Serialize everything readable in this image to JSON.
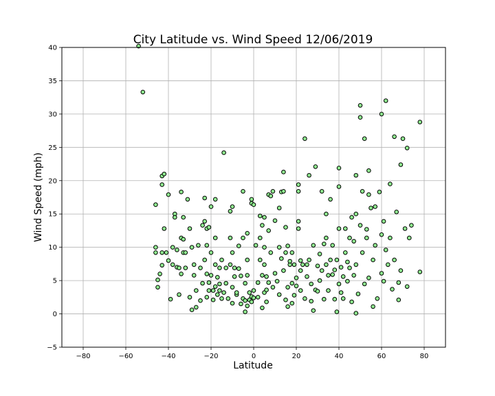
{
  "chart_data": {
    "type": "scatter",
    "title": "City Latitude vs. Wind Speed 12/06/2019",
    "xlabel": "Latitude",
    "ylabel": "Wind Speed (mph)",
    "xlim": [
      -90,
      90
    ],
    "ylim": [
      -5,
      40
    ],
    "xticks": [
      -80,
      -60,
      -40,
      -20,
      0,
      20,
      40,
      60,
      80
    ],
    "yticks": [
      -5,
      0,
      5,
      10,
      15,
      20,
      25,
      30,
      35,
      40
    ],
    "grid": true,
    "marker_color": "#90ee90",
    "marker_edge_color": "#000000",
    "points": [
      [
        -54,
        40.2
      ],
      [
        -52,
        33.3
      ],
      [
        -46,
        16.4
      ],
      [
        -46,
        10
      ],
      [
        -46,
        9.2
      ],
      [
        -45,
        4
      ],
      [
        -45,
        5.1
      ],
      [
        -44,
        6
      ],
      [
        -43,
        19.4
      ],
      [
        -43,
        20.7
      ],
      [
        -43,
        9.2
      ],
      [
        -43,
        7.3
      ],
      [
        -42,
        21
      ],
      [
        -42,
        12.8
      ],
      [
        -41,
        9.2
      ],
      [
        -40,
        17.9
      ],
      [
        -40,
        8
      ],
      [
        -39,
        2.2
      ],
      [
        -38,
        7.4
      ],
      [
        -38,
        10
      ],
      [
        -37,
        15
      ],
      [
        -37,
        14.5
      ],
      [
        -36,
        9.6
      ],
      [
        -36,
        7
      ],
      [
        -35,
        2.9
      ],
      [
        -35,
        6.9
      ],
      [
        -34,
        18.3
      ],
      [
        -34,
        11.4
      ],
      [
        -34,
        6
      ],
      [
        -33,
        9.2
      ],
      [
        -33,
        14.5
      ],
      [
        -33,
        11.2
      ],
      [
        -32,
        9.2
      ],
      [
        -32,
        6.9
      ],
      [
        -31,
        17.2
      ],
      [
        -30,
        12.8
      ],
      [
        -30,
        2.5
      ],
      [
        -29,
        10
      ],
      [
        -29,
        0.6
      ],
      [
        -28,
        5.8
      ],
      [
        -28,
        7.4
      ],
      [
        -27,
        3.5
      ],
      [
        -27,
        1
      ],
      [
        -26,
        10.3
      ],
      [
        -25,
        2
      ],
      [
        -25,
        6.9
      ],
      [
        -24,
        13.3
      ],
      [
        -24,
        4.6
      ],
      [
        -23,
        8.1
      ],
      [
        -23,
        13.9
      ],
      [
        -23,
        17.4
      ],
      [
        -22,
        12.8
      ],
      [
        -22,
        10.3
      ],
      [
        -22,
        6
      ],
      [
        -22,
        2.5
      ],
      [
        -21,
        3.5
      ],
      [
        -21,
        13
      ],
      [
        -21,
        4.7
      ],
      [
        -20,
        9.2
      ],
      [
        -20,
        16.1
      ],
      [
        -20,
        5.8
      ],
      [
        -19,
        3.5
      ],
      [
        -19,
        2.1
      ],
      [
        -18,
        7.4
      ],
      [
        -18,
        11.4
      ],
      [
        -18,
        4.1
      ],
      [
        -18,
        17.2
      ],
      [
        -17,
        5.5
      ],
      [
        -17,
        2.9
      ],
      [
        -16,
        3.5
      ],
      [
        -16,
        6.9
      ],
      [
        -16,
        4.5
      ],
      [
        -15,
        8.1
      ],
      [
        -15,
        2.3
      ],
      [
        -14,
        24.2
      ],
      [
        -14,
        3.2
      ],
      [
        -13,
        6.9
      ],
      [
        -13,
        4.6
      ],
      [
        -12,
        2.3
      ],
      [
        -11,
        7.4
      ],
      [
        -11,
        15.4
      ],
      [
        -11,
        11.4
      ],
      [
        -10,
        16.1
      ],
      [
        -10,
        9.2
      ],
      [
        -10,
        4
      ],
      [
        -10,
        1.6
      ],
      [
        -9,
        5.6
      ],
      [
        -9,
        6.9
      ],
      [
        -8,
        2.9
      ],
      [
        -8,
        3.2
      ],
      [
        -7,
        10.2
      ],
      [
        -7,
        6.8
      ],
      [
        -6,
        1.5
      ],
      [
        -6,
        5.7
      ],
      [
        -5,
        2.3
      ],
      [
        -5,
        11.4
      ],
      [
        -5,
        18.4
      ],
      [
        -4,
        0.3
      ],
      [
        -4,
        2
      ],
      [
        -4,
        4.6
      ],
      [
        -3,
        12.1
      ],
      [
        -3,
        5.8
      ],
      [
        -3,
        8.1
      ],
      [
        -3,
        1.2
      ],
      [
        -2,
        2.1
      ],
      [
        -2,
        3.2
      ],
      [
        -1,
        16.6
      ],
      [
        -1,
        17.2
      ],
      [
        -1,
        1.8
      ],
      [
        -1,
        2.6
      ],
      [
        0,
        16.4
      ],
      [
        0,
        3.5
      ],
      [
        0,
        2.4
      ],
      [
        1,
        10.3
      ],
      [
        2,
        2.5
      ],
      [
        2,
        4.7
      ],
      [
        3,
        14.7
      ],
      [
        3,
        8.1
      ],
      [
        3,
        11.4
      ],
      [
        4,
        0.9
      ],
      [
        4,
        5.8
      ],
      [
        4,
        13.3
      ],
      [
        5,
        10
      ],
      [
        5,
        7.4
      ],
      [
        5,
        14.5
      ],
      [
        5,
        3.2
      ],
      [
        6,
        3.6
      ],
      [
        6,
        5.6
      ],
      [
        6,
        1.8
      ],
      [
        7,
        17.9
      ],
      [
        7,
        12.5
      ],
      [
        7,
        4.7
      ],
      [
        8,
        17.7
      ],
      [
        8,
        9.2
      ],
      [
        9,
        18.4
      ],
      [
        9,
        4
      ],
      [
        10,
        14
      ],
      [
        10,
        6.1
      ],
      [
        11,
        4.9
      ],
      [
        12,
        15.9
      ],
      [
        12,
        10
      ],
      [
        12,
        2.9
      ],
      [
        13,
        18.3
      ],
      [
        13,
        8.3
      ],
      [
        14,
        21.3
      ],
      [
        14,
        18.4
      ],
      [
        14,
        6.5
      ],
      [
        15,
        9.2
      ],
      [
        15,
        13
      ],
      [
        15,
        2.1
      ],
      [
        16,
        4
      ],
      [
        16,
        10.2
      ],
      [
        16,
        1.1
      ],
      [
        17,
        7.4
      ],
      [
        17,
        7.9
      ],
      [
        18,
        4.6
      ],
      [
        18,
        9.2
      ],
      [
        18,
        1.6
      ],
      [
        19,
        7.4
      ],
      [
        19,
        2.8
      ],
      [
        20,
        4.2
      ],
      [
        20,
        5.4
      ],
      [
        21,
        18.4
      ],
      [
        21,
        19.4
      ],
      [
        21,
        12.8
      ],
      [
        21,
        13.9
      ],
      [
        22,
        8
      ],
      [
        22,
        3.5
      ],
      [
        22,
        6.5
      ],
      [
        23,
        7.4
      ],
      [
        24,
        26.3
      ],
      [
        24,
        2.3
      ],
      [
        25,
        5.6
      ],
      [
        25,
        7.4
      ],
      [
        26,
        8.1
      ],
      [
        26,
        20.8
      ],
      [
        27,
        4.5
      ],
      [
        27,
        1.9
      ],
      [
        28,
        10.3
      ],
      [
        28,
        0.5
      ],
      [
        29,
        22.1
      ],
      [
        29,
        3.6
      ],
      [
        30,
        7.2
      ],
      [
        30,
        3.4
      ],
      [
        31,
        5
      ],
      [
        31,
        9
      ],
      [
        32,
        18.4
      ],
      [
        32,
        6.5
      ],
      [
        33,
        10.5
      ],
      [
        33,
        2.2
      ],
      [
        34,
        15
      ],
      [
        34,
        11.4
      ],
      [
        34,
        7.4
      ],
      [
        35,
        3.5
      ],
      [
        35,
        5.8
      ],
      [
        36,
        17.2
      ],
      [
        36,
        8.1
      ],
      [
        37,
        10.3
      ],
      [
        37,
        5.9
      ],
      [
        38,
        6.6
      ],
      [
        38,
        2.2
      ],
      [
        39,
        0.3
      ],
      [
        39,
        8.1
      ],
      [
        40,
        19.1
      ],
      [
        40,
        21.9
      ],
      [
        40,
        12.8
      ],
      [
        40,
        4.5
      ],
      [
        41,
        7
      ],
      [
        41,
        3.2
      ],
      [
        42,
        2.3
      ],
      [
        42,
        5.6
      ],
      [
        43,
        9.2
      ],
      [
        43,
        12.8
      ],
      [
        44,
        7.8
      ],
      [
        44,
        4.9
      ],
      [
        45,
        11.4
      ],
      [
        45,
        6.9
      ],
      [
        46,
        1.8
      ],
      [
        46,
        14.5
      ],
      [
        47,
        5.8
      ],
      [
        47,
        10.9
      ],
      [
        48,
        0.1
      ],
      [
        48,
        20.8
      ],
      [
        48,
        15
      ],
      [
        48,
        7.4
      ],
      [
        49,
        3
      ],
      [
        50,
        29.5
      ],
      [
        50,
        31.3
      ],
      [
        50,
        13.3
      ],
      [
        51,
        18.4
      ],
      [
        51,
        9.2
      ],
      [
        52,
        26.3
      ],
      [
        52,
        4.5
      ],
      [
        53,
        11.4
      ],
      [
        53,
        12.7
      ],
      [
        54,
        17.9
      ],
      [
        54,
        21.5
      ],
      [
        54,
        5.4
      ],
      [
        55,
        15.9
      ],
      [
        56,
        8.1
      ],
      [
        56,
        1.1
      ],
      [
        57,
        16.1
      ],
      [
        57,
        10.3
      ],
      [
        58,
        2.3
      ],
      [
        59,
        18.3
      ],
      [
        60,
        30
      ],
      [
        60,
        11.9
      ],
      [
        60,
        6.1
      ],
      [
        61,
        4.9
      ],
      [
        61,
        13.9
      ],
      [
        62,
        32
      ],
      [
        62,
        9.6
      ],
      [
        63,
        7.4
      ],
      [
        64,
        19.5
      ],
      [
        64,
        11.4
      ],
      [
        65,
        3.7
      ],
      [
        66,
        26.6
      ],
      [
        66,
        8.1
      ],
      [
        67,
        15.3
      ],
      [
        68,
        4.7
      ],
      [
        68,
        2.1
      ],
      [
        69,
        22.4
      ],
      [
        69,
        6.5
      ],
      [
        70,
        26.3
      ],
      [
        71,
        12.8
      ],
      [
        72,
        24.9
      ],
      [
        72,
        4.1
      ],
      [
        73,
        11.4
      ],
      [
        74,
        13.3
      ],
      [
        78,
        6.3
      ],
      [
        78,
        28.8
      ]
    ]
  }
}
